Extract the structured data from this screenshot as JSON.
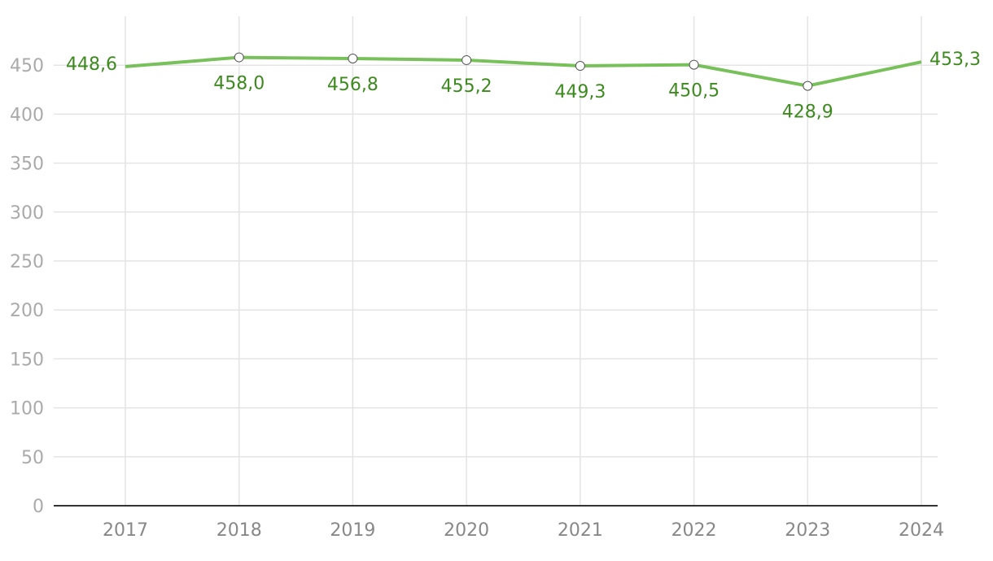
{
  "chart_data": {
    "type": "line",
    "categories": [
      "2017",
      "2018",
      "2019",
      "2020",
      "2021",
      "2022",
      "2023",
      "2024"
    ],
    "series": [
      {
        "color": "#77c05a",
        "label_color": "#3d8a1f",
        "values": [
          448.6,
          458.0,
          456.8,
          455.2,
          449.3,
          450.5,
          428.9,
          453.3
        ],
        "value_labels": [
          "448,6",
          "458,0",
          "456,8",
          "455,2",
          "449,3",
          "450,5",
          "428,9",
          "453,3"
        ]
      }
    ],
    "ylim": [
      0,
      500
    ],
    "yticks": [
      0,
      50,
      100,
      150,
      200,
      250,
      300,
      350,
      400,
      450
    ],
    "grid": true
  }
}
